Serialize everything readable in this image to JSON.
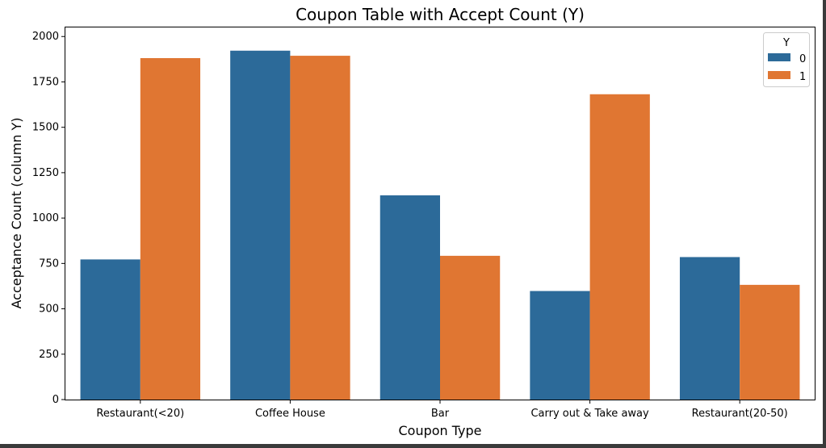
{
  "chart_data": {
    "type": "bar",
    "title": "Coupon Table with Accept Count (Y)",
    "xlabel": "Coupon Type",
    "ylabel": "Acceptance Count (column Y)",
    "categories": [
      "Restaurant(<20)",
      "Coffee House",
      "Bar",
      "Carry out & Take away",
      "Restaurant(20-50)"
    ],
    "series": [
      {
        "name": "0",
        "values": [
          772,
          1922,
          1125,
          598,
          785
        ],
        "color": "#2c6a99"
      },
      {
        "name": "1",
        "values": [
          1881,
          1894,
          792,
          1682,
          632
        ],
        "color": "#e07632"
      }
    ],
    "ylim": [
      0,
      2050
    ],
    "yticks": [
      0,
      250,
      500,
      750,
      1000,
      1250,
      1500,
      1750,
      2000
    ],
    "legend": {
      "title": "Y",
      "position": "top-right"
    },
    "grid": false
  }
}
